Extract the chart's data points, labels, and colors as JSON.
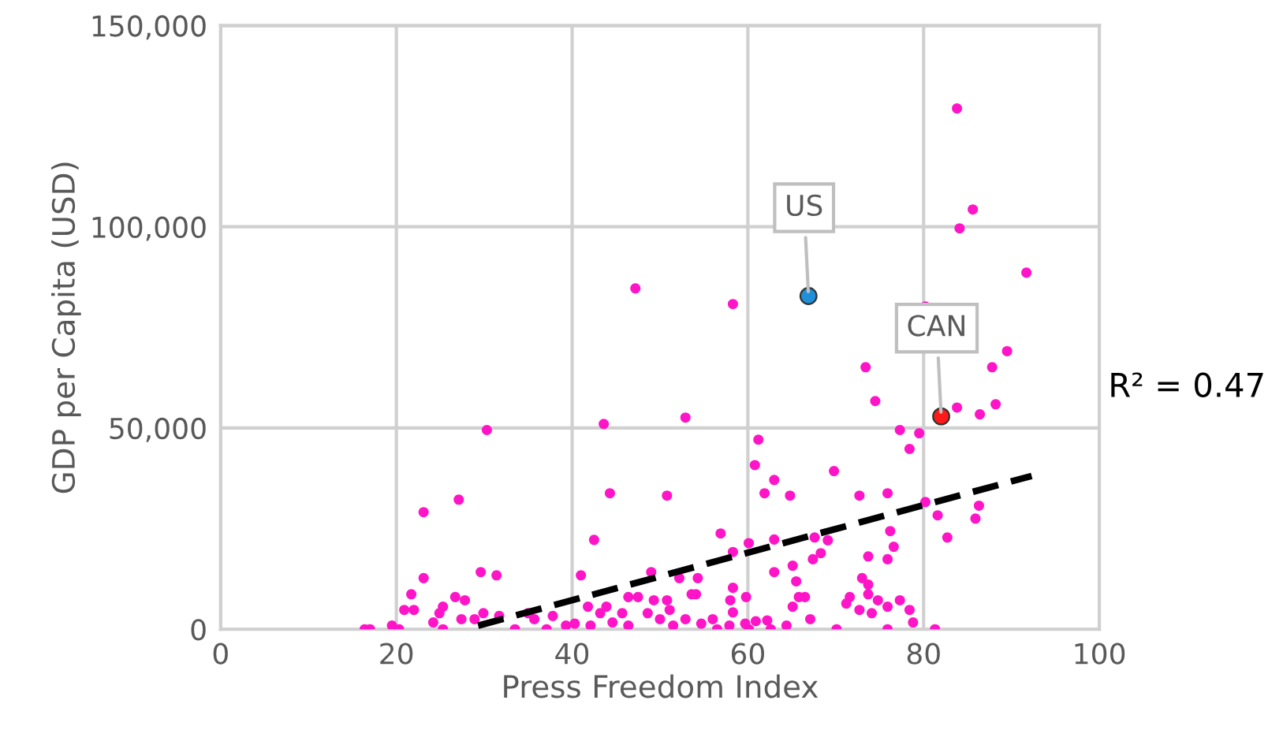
{
  "chart_data": {
    "type": "scatter",
    "xlabel": "Press Freedom Index",
    "ylabel": "GDP per Capita (USD)",
    "xlim": [
      0,
      100
    ],
    "xticks": [
      0,
      20,
      40,
      60,
      80,
      100
    ],
    "ylim": [
      0,
      150000
    ],
    "yticks": [
      {
        "value": 0,
        "label": "0"
      },
      {
        "value": 50000,
        "label": "50,000"
      },
      {
        "value": 100000,
        "label": "100,000"
      },
      {
        "value": 150000,
        "label": "150,000"
      }
    ],
    "grid": true,
    "marker": "circle",
    "series": [
      {
        "color": "#ff14c8",
        "x": [
          83.8,
          85.6,
          84.1,
          91.7,
          47.2,
          58.3,
          80.2,
          89.5,
          87.8,
          73.4,
          74.5,
          88.2,
          83.8,
          86.4,
          77.3,
          79.5,
          78.4,
          61.2,
          60.8,
          63.0,
          61.9,
          64.8,
          69.8,
          72.7,
          75.9,
          80.2,
          81.6,
          86.3,
          85.9,
          82.7,
          56.9,
          58.3,
          60.1,
          63.0,
          67.6,
          69.1,
          68.3,
          67.4,
          76.2,
          76.6,
          75.9,
          73.7,
          63.0,
          65.1,
          65.5,
          54.3,
          54.1,
          58.3,
          59.8,
          58.0,
          58.3,
          65.8,
          66.5,
          65.1,
          73.0,
          73.7,
          71.6,
          71.2,
          73.7,
          74.8,
          72.7,
          74.1,
          75.9,
          77.3,
          78.4,
          78.8,
          81.3,
          75.9,
          70.1,
          62.6,
          60.1,
          56.5,
          54.7,
          56.0,
          57.9,
          59.7,
          62.2,
          64.4,
          67.1,
          60.9,
          30.3,
          43.6,
          52.9,
          23.1,
          27.1,
          44.3,
          50.8,
          42.5,
          23.1,
          21.7,
          20.9,
          22.0,
          29.6,
          31.4,
          26.7,
          27.8,
          25.3,
          24.9,
          24.2,
          25.3,
          27.4,
          28.9,
          29.9,
          31.7,
          33.5,
          35.0,
          35.7,
          37.1,
          37.8,
          16.4,
          17.0,
          19.5,
          20.3,
          41.0,
          39.3,
          40.3,
          41.8,
          42.1,
          43.2,
          43.9,
          44.6,
          45.7,
          46.4,
          47.5,
          46.4,
          49.0,
          49.3,
          48.6,
          50.8,
          51.1,
          50.0,
          52.2,
          53.6,
          51.5,
          52.9
        ],
        "values": [
          129400,
          104300,
          99600,
          88600,
          84700,
          80800,
          80200,
          69100,
          65100,
          65100,
          56700,
          55900,
          55100,
          53400,
          49500,
          48700,
          44800,
          47100,
          40800,
          37100,
          33800,
          33200,
          39300,
          33200,
          33800,
          31600,
          28300,
          30700,
          27500,
          22800,
          23800,
          19200,
          21400,
          22300,
          22800,
          22100,
          18900,
          17400,
          24400,
          20500,
          17400,
          18100,
          14200,
          15800,
          11900,
          12700,
          8700,
          10300,
          8000,
          7200,
          4200,
          8000,
          8000,
          5600,
          12700,
          11100,
          8000,
          6400,
          8700,
          7200,
          4800,
          4000,
          5600,
          7200,
          4800,
          1700,
          0,
          0,
          0,
          0,
          0,
          0,
          1400,
          2500,
          900,
          1400,
          2200,
          900,
          2500,
          2000,
          49500,
          51000,
          52600,
          29100,
          32200,
          33800,
          33200,
          22200,
          12700,
          8700,
          4800,
          4800,
          14200,
          13400,
          8000,
          7200,
          5600,
          4000,
          1700,
          0,
          2500,
          2500,
          4000,
          3300,
          0,
          4000,
          2500,
          0,
          3300,
          0,
          0,
          900,
          0,
          13400,
          900,
          1400,
          5600,
          900,
          4000,
          5600,
          1700,
          4000,
          8000,
          8000,
          900,
          14200,
          7200,
          4000,
          7200,
          4800,
          2500,
          12700,
          8700,
          900,
          2500
        ]
      },
      {
        "color": "#1e8fd8",
        "x": [
          66.9
        ],
        "values": [
          82800
        ]
      },
      {
        "color": "#ff1a1a",
        "x": [
          82.0
        ],
        "values": [
          52900
        ]
      },
      {
        "type": "line",
        "color": "#000000",
        "line_style": "dashed",
        "marker": "none",
        "x": [
          29.3,
          92.3
        ],
        "values": [
          900,
          38100
        ]
      }
    ],
    "annotations": [
      {
        "text": "US",
        "x": 66.9,
        "y": 82800
      },
      {
        "text": "CAN",
        "x": 82.0,
        "y": 52900
      },
      "R² = 0.47"
    ]
  }
}
